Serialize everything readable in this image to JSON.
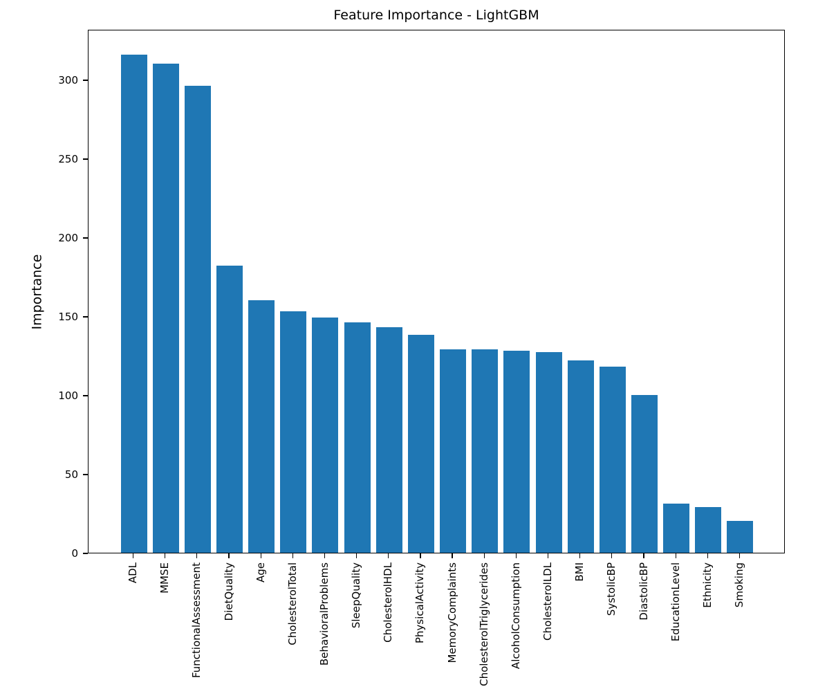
{
  "figure": {
    "background": "#ffffff",
    "text_color": "#000000"
  },
  "chart_data": {
    "type": "bar",
    "title": "Feature Importance - LightGBM",
    "xlabel": "",
    "ylabel": "Importance",
    "bar_color": "#1f77b4",
    "grid": false,
    "legend": "none",
    "x_tick_rotation": 90,
    "categories": [
      "ADL",
      "MMSE",
      "FunctionalAssessment",
      "DietQuality",
      "Age",
      "CholesterolTotal",
      "BehavioralProblems",
      "SleepQuality",
      "CholesterolHDL",
      "PhysicalActivity",
      "MemoryComplaints",
      "CholesterolTriglycerides",
      "AlcoholConsumption",
      "CholesterolLDL",
      "BMI",
      "SystolicBP",
      "DiastolicBP",
      "EducationLevel",
      "Ethnicity",
      "Smoking"
    ],
    "values": [
      316,
      310,
      296,
      182,
      160,
      153,
      149,
      146,
      143,
      138,
      129,
      129,
      128,
      127,
      122,
      118,
      100,
      31,
      29,
      20
    ],
    "ylim": [
      0,
      332
    ],
    "yticks": [
      0,
      50,
      100,
      150,
      200,
      250,
      300
    ]
  }
}
